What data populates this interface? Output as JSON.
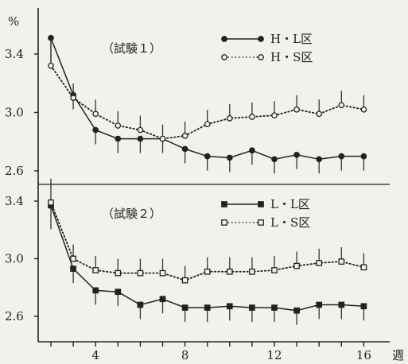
{
  "chart_data": [
    {
      "type": "line",
      "title": "（試験１）",
      "ylabel": "%",
      "xlabel": "週",
      "x": [
        2,
        3,
        4,
        5,
        6,
        7,
        8,
        9,
        10,
        11,
        12,
        13,
        14,
        15,
        16
      ],
      "ylim": [
        2.55,
        3.55
      ],
      "yticks": [
        2.6,
        3.0,
        3.4
      ],
      "series": [
        {
          "name": "H・L区",
          "marker": "filled-circle",
          "line": "solid",
          "values": [
            3.51,
            3.12,
            2.88,
            2.82,
            2.82,
            2.82,
            2.75,
            2.7,
            2.69,
            2.74,
            2.68,
            2.71,
            2.68,
            2.7,
            2.7
          ]
        },
        {
          "name": "H・S区",
          "marker": "open-circle",
          "line": "dotted",
          "values": [
            3.32,
            3.1,
            2.99,
            2.91,
            2.88,
            2.82,
            2.84,
            2.92,
            2.96,
            2.97,
            2.98,
            3.02,
            2.99,
            3.05,
            3.02
          ]
        }
      ]
    },
    {
      "type": "line",
      "title": "（試験２）",
      "ylabel": "",
      "xlabel": "週",
      "x": [
        2,
        3,
        4,
        5,
        6,
        7,
        8,
        9,
        10,
        11,
        12,
        13,
        14,
        15,
        16
      ],
      "ylim": [
        2.55,
        3.45
      ],
      "yticks": [
        2.6,
        3.0,
        3.4
      ],
      "xticks": [
        4,
        8,
        12,
        16
      ],
      "series": [
        {
          "name": "L・L区",
          "marker": "filled-square",
          "line": "solid",
          "values": [
            3.37,
            2.93,
            2.78,
            2.77,
            2.68,
            2.72,
            2.66,
            2.66,
            2.67,
            2.66,
            2.66,
            2.64,
            2.68,
            2.68,
            2.67
          ]
        },
        {
          "name": "L・S区",
          "marker": "open-square",
          "line": "dotted",
          "values": [
            3.39,
            3.0,
            2.92,
            2.9,
            2.9,
            2.9,
            2.85,
            2.91,
            2.91,
            2.91,
            2.92,
            2.95,
            2.97,
            2.98,
            2.94
          ]
        }
      ]
    }
  ]
}
